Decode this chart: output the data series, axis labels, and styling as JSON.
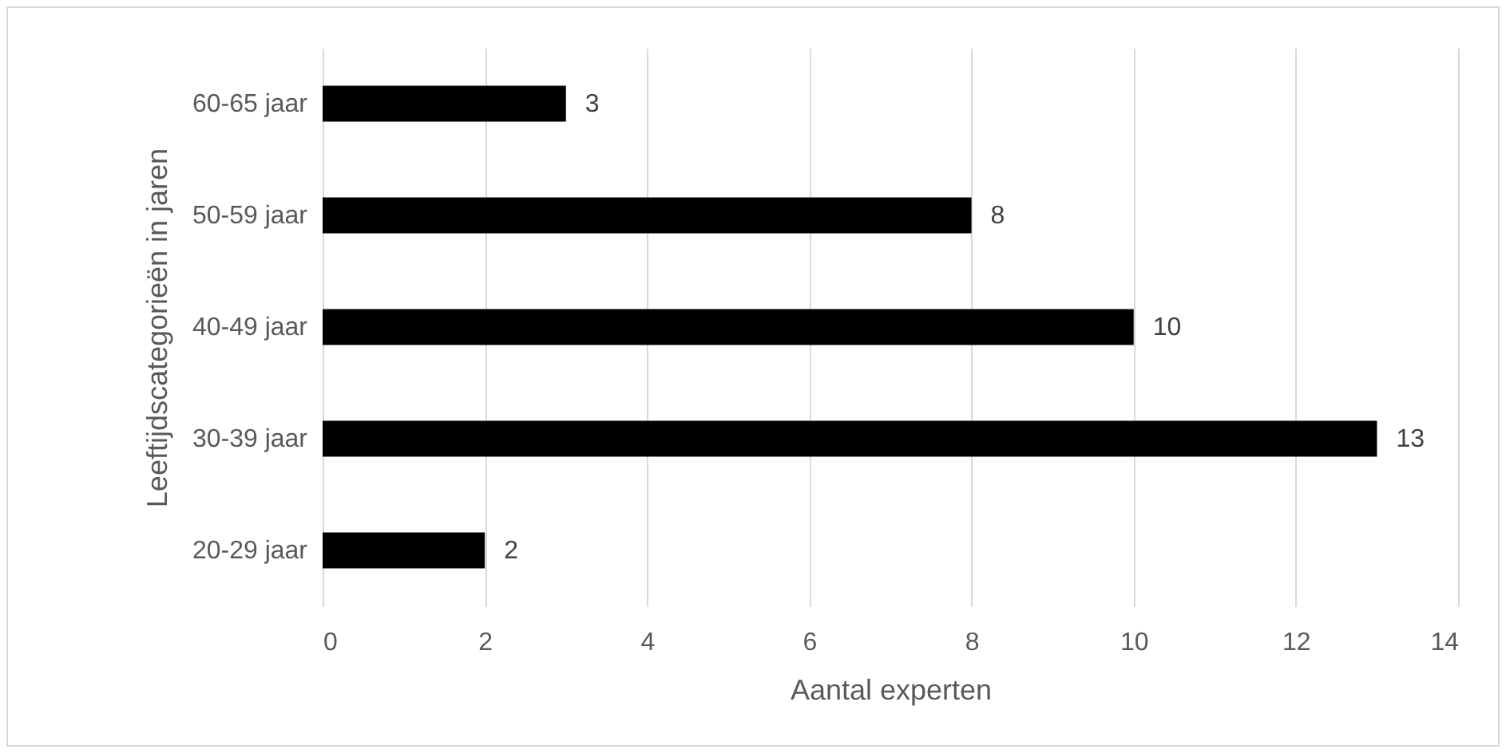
{
  "chart_data": {
    "type": "bar",
    "orientation": "horizontal",
    "xlabel": "Aantal experten",
    "ylabel": "Leeftijdscategorieën in jaren",
    "categories": [
      "60-65 jaar",
      "50-59 jaar",
      "40-49 jaar",
      "30-39 jaar",
      "20-29 jaar"
    ],
    "values": [
      3,
      8,
      10,
      13,
      2
    ],
    "color": "#000000",
    "xlim": [
      0,
      14
    ],
    "xticks": [
      0,
      2,
      4,
      6,
      8,
      10,
      12,
      14
    ],
    "grid": "x",
    "data_labels": true
  }
}
